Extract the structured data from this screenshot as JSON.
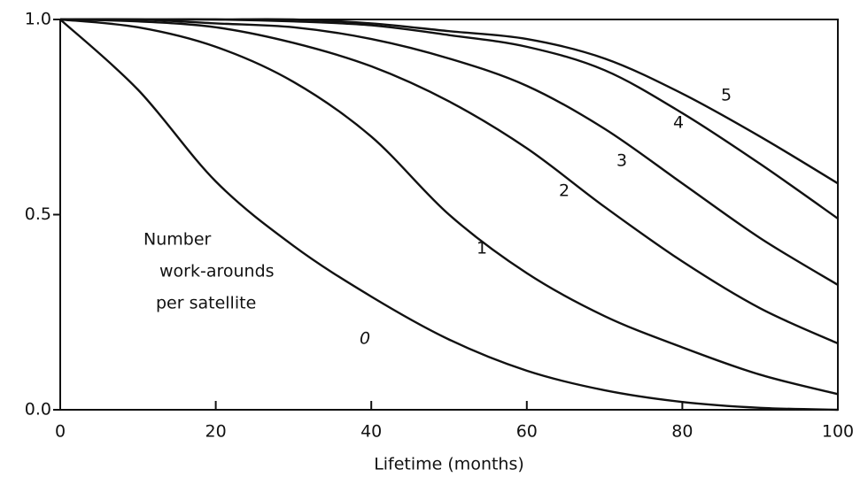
{
  "chart_data": {
    "type": "line",
    "x_label": "Lifetime (months)",
    "annotation": [
      "Number",
      "work-arounds",
      "per satellite"
    ],
    "x": [
      0,
      10,
      20,
      30,
      40,
      50,
      60,
      70,
      80,
      90,
      100
    ],
    "series": [
      {
        "name": "0",
        "color": "#111111",
        "values": [
          1.0,
          0.82,
          0.585,
          0.42,
          0.29,
          0.18,
          0.1,
          0.05,
          0.02,
          0.005,
          0.0
        ]
      },
      {
        "name": "1",
        "color": "#111111",
        "values": [
          1.0,
          0.98,
          0.93,
          0.84,
          0.7,
          0.5,
          0.35,
          0.24,
          0.16,
          0.09,
          0.04
        ]
      },
      {
        "name": "2",
        "color": "#111111",
        "values": [
          1.0,
          0.995,
          0.98,
          0.94,
          0.88,
          0.79,
          0.67,
          0.52,
          0.38,
          0.26,
          0.17
        ]
      },
      {
        "name": "3",
        "color": "#111111",
        "values": [
          1.0,
          1.0,
          0.99,
          0.98,
          0.95,
          0.9,
          0.83,
          0.72,
          0.58,
          0.44,
          0.32
        ]
      },
      {
        "name": "4",
        "color": "#111111",
        "values": [
          1.0,
          1.0,
          1.0,
          0.995,
          0.985,
          0.96,
          0.93,
          0.87,
          0.76,
          0.63,
          0.49
        ]
      },
      {
        "name": "5",
        "color": "#111111",
        "values": [
          1.0,
          1.0,
          1.0,
          1.0,
          0.99,
          0.97,
          0.95,
          0.9,
          0.81,
          0.7,
          0.58
        ]
      }
    ],
    "xlim": [
      0,
      100
    ],
    "xticks": [
      0,
      20,
      40,
      60,
      80,
      100
    ],
    "ylim": [
      0,
      1
    ],
    "yticks": [
      {
        "value": 0,
        "label": "0.0"
      },
      0.5,
      {
        "value": 1,
        "label": "1.0"
      }
    ]
  }
}
